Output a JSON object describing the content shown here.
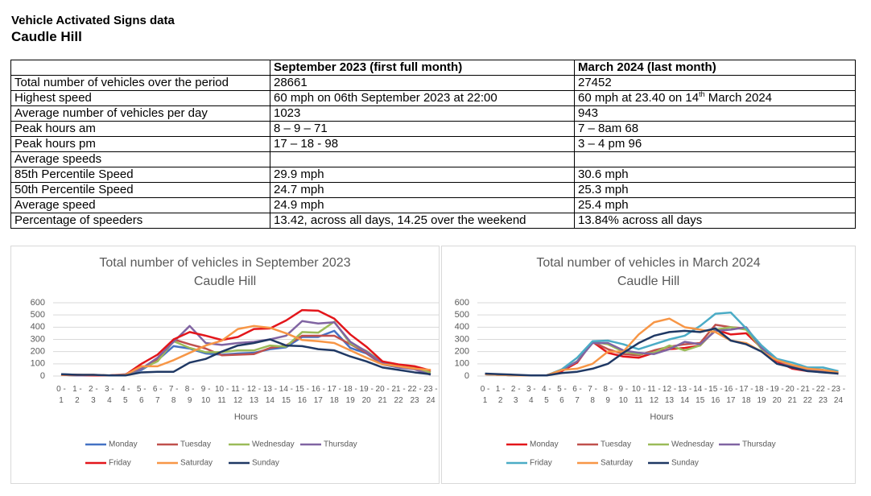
{
  "header": {
    "title": "Vehicle Activated Signs data",
    "subtitle": "Caudle Hill"
  },
  "table": {
    "columns": [
      "September 2023 (first full month)",
      "March 2024 (last month)"
    ],
    "rows": [
      [
        "Total number of vehicles over the period",
        "28661",
        "27452"
      ],
      [
        "Highest speed",
        "60 mph on 06th September 2023 at 22:00",
        {
          "before": "60 mph at 23.40 on 14",
          "sup": "th",
          "after": " March 2024"
        }
      ],
      [
        "Average number of vehicles per day",
        "1023",
        "943"
      ],
      [
        "Peak hours am",
        "8 – 9 – 71",
        "7 – 8am 68"
      ],
      [
        "Peak hours pm",
        "17 – 18 - 98",
        "3 – 4 pm 96"
      ],
      [
        "Average speeds"
      ],
      [
        "85th Percentile Speed",
        "29.9 mph",
        "30.6 mph"
      ],
      [
        "50th Percentile Speed",
        "24.7 mph",
        "25.3 mph"
      ],
      [
        "Average speed",
        "24.9 mph",
        "25.4 mph"
      ],
      [
        "Percentage of speeders",
        "13.42, across all days, 14.25 over the weekend",
        "13.84% across all days"
      ]
    ]
  },
  "chart_data": [
    {
      "type": "line",
      "title": "Total number of vehicles in September 2023",
      "subtitle": "Caudle Hill",
      "x_label": "Hours",
      "categories": [
        "0 - 1",
        "1 - 2",
        "2 - 3",
        "3 - 4",
        "4 - 5",
        "5 - 6",
        "6 - 7",
        "7 - 8",
        "8 - 9",
        "9 - 10",
        "10 - 11",
        "11 - 12",
        "12 - 13",
        "13 - 14",
        "14 - 15",
        "15 - 16",
        "16 - 17",
        "17 - 18",
        "18 - 19",
        "19 - 20",
        "20 - 21",
        "21 - 22",
        "22 - 23",
        "23 - 24"
      ],
      "ylim": [
        0,
        600
      ],
      "yticks": [
        0,
        100,
        200,
        300,
        400,
        500,
        600
      ],
      "grid": true,
      "legend": "bottom",
      "series": [
        {
          "name": "Monday",
          "color": "#4472c4",
          "values": [
            15,
            10,
            5,
            5,
            10,
            50,
            130,
            245,
            225,
            185,
            175,
            185,
            190,
            220,
            235,
            320,
            320,
            370,
            230,
            185,
            95,
            70,
            60,
            40
          ]
        },
        {
          "name": "Tuesday",
          "color": "#c0504d",
          "values": [
            10,
            5,
            5,
            5,
            10,
            60,
            130,
            300,
            260,
            225,
            170,
            175,
            180,
            230,
            250,
            330,
            330,
            330,
            260,
            190,
            100,
            75,
            60,
            30
          ]
        },
        {
          "name": "Wednesday",
          "color": "#9bbb59",
          "values": [
            10,
            5,
            5,
            5,
            10,
            60,
            120,
            285,
            230,
            195,
            195,
            210,
            210,
            250,
            240,
            360,
            355,
            445,
            265,
            205,
            110,
            80,
            65,
            30
          ]
        },
        {
          "name": "Thursday",
          "color": "#8064a2",
          "values": [
            10,
            5,
            5,
            5,
            15,
            60,
            150,
            280,
            410,
            270,
            255,
            270,
            280,
            300,
            330,
            450,
            430,
            440,
            280,
            200,
            105,
            70,
            55,
            10
          ]
        },
        {
          "name": "Friday",
          "color": "#e3161b",
          "values": [
            10,
            10,
            5,
            5,
            10,
            100,
            175,
            300,
            360,
            330,
            295,
            320,
            385,
            390,
            455,
            540,
            535,
            470,
            340,
            240,
            120,
            95,
            80,
            45
          ]
        },
        {
          "name": "Saturday",
          "color": "#f79646",
          "values": [
            10,
            10,
            10,
            5,
            10,
            80,
            80,
            130,
            190,
            250,
            290,
            385,
            410,
            395,
            350,
            295,
            285,
            270,
            210,
            150,
            95,
            80,
            60,
            50
          ]
        },
        {
          "name": "Sunday",
          "color": "#1f3864",
          "values": [
            15,
            10,
            10,
            5,
            5,
            30,
            35,
            35,
            110,
            140,
            200,
            250,
            270,
            300,
            250,
            245,
            220,
            210,
            160,
            120,
            70,
            50,
            30,
            15
          ]
        }
      ]
    },
    {
      "type": "line",
      "title": "Total number of vehicles in March 2024",
      "subtitle": "Caudle Hill",
      "x_label": "Hours",
      "categories": [
        "0 - 1",
        "1 - 2",
        "2 - 3",
        "3 - 4",
        "4 - 5",
        "5 - 6",
        "6 - 7",
        "7 - 8",
        "8 - 9",
        "9 - 10",
        "10 - 11",
        "11 - 12",
        "12 - 13",
        "13 - 14",
        "14 - 15",
        "15 - 16",
        "16 - 17",
        "17 - 18",
        "18 - 19",
        "19 - 20",
        "20 - 21",
        "21 - 22",
        "22 - 23",
        "23 - 24"
      ],
      "ylim": [
        0,
        600
      ],
      "yticks": [
        0,
        100,
        200,
        300,
        400,
        500,
        600
      ],
      "grid": true,
      "legend": "bottom",
      "series": [
        {
          "name": "Monday",
          "color": "#e3161b",
          "values": [
            15,
            10,
            5,
            5,
            5,
            40,
            110,
            280,
            190,
            160,
            150,
            190,
            220,
            230,
            250,
            380,
            340,
            350,
            230,
            120,
            60,
            40,
            40,
            20
          ]
        },
        {
          "name": "Tuesday",
          "color": "#c0504d",
          "values": [
            15,
            10,
            5,
            5,
            5,
            50,
            120,
            280,
            220,
            180,
            170,
            210,
            240,
            260,
            270,
            420,
            400,
            390,
            240,
            130,
            80,
            60,
            50,
            20
          ]
        },
        {
          "name": "Wednesday",
          "color": "#9bbb59",
          "values": [
            15,
            10,
            5,
            5,
            5,
            50,
            120,
            280,
            260,
            200,
            180,
            190,
            250,
            210,
            250,
            380,
            400,
            380,
            220,
            130,
            90,
            60,
            40,
            20
          ]
        },
        {
          "name": "Thursday",
          "color": "#8064a2",
          "values": [
            15,
            10,
            5,
            5,
            5,
            50,
            120,
            270,
            270,
            210,
            190,
            180,
            220,
            280,
            260,
            370,
            380,
            400,
            230,
            130,
            80,
            50,
            40,
            20
          ]
        },
        {
          "name": "Friday",
          "color": "#4bacc6",
          "values": [
            15,
            10,
            5,
            5,
            5,
            55,
            150,
            285,
            290,
            260,
            220,
            260,
            300,
            330,
            410,
            510,
            520,
            390,
            250,
            140,
            110,
            70,
            70,
            40
          ]
        },
        {
          "name": "Saturday",
          "color": "#f79646",
          "values": [
            15,
            10,
            5,
            5,
            5,
            50,
            60,
            100,
            200,
            200,
            340,
            440,
            470,
            400,
            380,
            360,
            290,
            270,
            200,
            130,
            90,
            60,
            50,
            30
          ]
        },
        {
          "name": "Sunday",
          "color": "#1f3864",
          "values": [
            20,
            15,
            10,
            5,
            5,
            25,
            35,
            60,
            100,
            190,
            270,
            330,
            360,
            370,
            360,
            390,
            290,
            260,
            200,
            100,
            70,
            40,
            30,
            20
          ]
        }
      ]
    }
  ]
}
